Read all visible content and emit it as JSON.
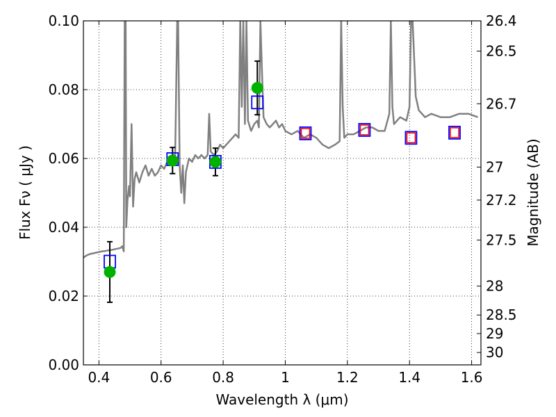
{
  "chart_data": {
    "type": "line",
    "xlabel": "Wavelength  λ (μm)",
    "ylabel": "Flux  Fν  ( μJy )",
    "ylabel_right": "Magnitude (AB)",
    "xlim": [
      0.35,
      1.63
    ],
    "ylim": [
      0.0,
      0.1
    ],
    "grid": true,
    "x_ticks": [
      0.4,
      0.6,
      0.8,
      1.0,
      1.2,
      1.4,
      1.6
    ],
    "x_tick_labels": [
      "0.4",
      "0.6",
      "0.8",
      "1",
      "1.2",
      "1.4",
      "1.6"
    ],
    "y_ticks": [
      0.0,
      0.02,
      0.04,
      0.06,
      0.08,
      0.1
    ],
    "y_tick_labels": [
      "0.00",
      "0.02",
      "0.04",
      "0.06",
      "0.08",
      "0.10"
    ],
    "right_ticks": [
      {
        "label": "26.4",
        "flux": 0.1
      },
      {
        "label": "26.5",
        "flux": 0.0912
      },
      {
        "label": "26.7",
        "flux": 0.0759
      },
      {
        "label": "27",
        "flux": 0.0575
      },
      {
        "label": "27.2",
        "flux": 0.0479
      },
      {
        "label": "27.5",
        "flux": 0.0363
      },
      {
        "label": "28",
        "flux": 0.0229
      },
      {
        "label": "28.5",
        "flux": 0.0145
      },
      {
        "label": "29",
        "flux": 0.0091
      },
      {
        "label": "30",
        "flux": 0.0036
      }
    ],
    "series": [
      {
        "kind": "model-spectrum",
        "color": "#808080",
        "points": [
          [
            0.35,
            0.0312
          ],
          [
            0.36,
            0.0318
          ],
          [
            0.37,
            0.0322
          ],
          [
            0.38,
            0.0324
          ],
          [
            0.39,
            0.0326
          ],
          [
            0.4,
            0.0328
          ],
          [
            0.41,
            0.033
          ],
          [
            0.42,
            0.0331
          ],
          [
            0.43,
            0.0333
          ],
          [
            0.44,
            0.0334
          ],
          [
            0.45,
            0.0336
          ],
          [
            0.46,
            0.0338
          ],
          [
            0.47,
            0.034
          ],
          [
            0.475,
            0.0345
          ],
          [
            0.48,
            0.033
          ],
          [
            0.483,
            0.1
          ],
          [
            0.486,
            0.1
          ],
          [
            0.488,
            0.04
          ],
          [
            0.492,
            0.048
          ],
          [
            0.497,
            0.052
          ],
          [
            0.5,
            0.049
          ],
          [
            0.505,
            0.07
          ],
          [
            0.51,
            0.046
          ],
          [
            0.515,
            0.054
          ],
          [
            0.52,
            0.056
          ],
          [
            0.53,
            0.053
          ],
          [
            0.54,
            0.056
          ],
          [
            0.55,
            0.058
          ],
          [
            0.56,
            0.055
          ],
          [
            0.57,
            0.057
          ],
          [
            0.58,
            0.055
          ],
          [
            0.59,
            0.056
          ],
          [
            0.6,
            0.058
          ],
          [
            0.61,
            0.057
          ],
          [
            0.62,
            0.059
          ],
          [
            0.63,
            0.06
          ],
          [
            0.64,
            0.061
          ],
          [
            0.645,
            0.058
          ],
          [
            0.652,
            0.1
          ],
          [
            0.655,
            0.1
          ],
          [
            0.66,
            0.058
          ],
          [
            0.665,
            0.05
          ],
          [
            0.67,
            0.058
          ],
          [
            0.675,
            0.047
          ],
          [
            0.68,
            0.056
          ],
          [
            0.69,
            0.06
          ],
          [
            0.7,
            0.059
          ],
          [
            0.71,
            0.061
          ],
          [
            0.72,
            0.06
          ],
          [
            0.73,
            0.061
          ],
          [
            0.74,
            0.06
          ],
          [
            0.75,
            0.061
          ],
          [
            0.755,
            0.073
          ],
          [
            0.76,
            0.062
          ],
          [
            0.77,
            0.061
          ],
          [
            0.78,
            0.062
          ],
          [
            0.79,
            0.064
          ],
          [
            0.8,
            0.063
          ],
          [
            0.81,
            0.064
          ],
          [
            0.82,
            0.065
          ],
          [
            0.83,
            0.066
          ],
          [
            0.84,
            0.067
          ],
          [
            0.85,
            0.066
          ],
          [
            0.855,
            0.1
          ],
          [
            0.86,
            0.075
          ],
          [
            0.865,
            0.1
          ],
          [
            0.87,
            0.07
          ],
          [
            0.875,
            0.1
          ],
          [
            0.88,
            0.071
          ],
          [
            0.89,
            0.068
          ],
          [
            0.9,
            0.07
          ],
          [
            0.91,
            0.071
          ],
          [
            0.915,
            0.069
          ],
          [
            0.92,
            0.1
          ],
          [
            0.925,
            0.085
          ],
          [
            0.93,
            0.072
          ],
          [
            0.94,
            0.07
          ],
          [
            0.95,
            0.069
          ],
          [
            0.96,
            0.07
          ],
          [
            0.97,
            0.071
          ],
          [
            0.98,
            0.069
          ],
          [
            0.99,
            0.07
          ],
          [
            1.0,
            0.068
          ],
          [
            1.02,
            0.067
          ],
          [
            1.04,
            0.068
          ],
          [
            1.06,
            0.066
          ],
          [
            1.08,
            0.067
          ],
          [
            1.1,
            0.066
          ],
          [
            1.12,
            0.064
          ],
          [
            1.14,
            0.063
          ],
          [
            1.16,
            0.064
          ],
          [
            1.175,
            0.065
          ],
          [
            1.18,
            0.1
          ],
          [
            1.185,
            0.075
          ],
          [
            1.19,
            0.066
          ],
          [
            1.2,
            0.067
          ],
          [
            1.22,
            0.067
          ],
          [
            1.24,
            0.068
          ],
          [
            1.26,
            0.069
          ],
          [
            1.28,
            0.069
          ],
          [
            1.3,
            0.068
          ],
          [
            1.32,
            0.068
          ],
          [
            1.335,
            0.073
          ],
          [
            1.34,
            0.1
          ],
          [
            1.345,
            0.075
          ],
          [
            1.35,
            0.07
          ],
          [
            1.37,
            0.072
          ],
          [
            1.39,
            0.071
          ],
          [
            1.4,
            0.075
          ],
          [
            1.405,
            0.1
          ],
          [
            1.41,
            0.1
          ],
          [
            1.42,
            0.078
          ],
          [
            1.43,
            0.074
          ],
          [
            1.45,
            0.072
          ],
          [
            1.47,
            0.073
          ],
          [
            1.5,
            0.072
          ],
          [
            1.53,
            0.072
          ],
          [
            1.56,
            0.073
          ],
          [
            1.59,
            0.073
          ],
          [
            1.62,
            0.072
          ]
        ]
      },
      {
        "kind": "observed-photometry",
        "marker": "circle",
        "color": "#00b200",
        "points": [
          {
            "x": 0.435,
            "y": 0.027,
            "err": 0.0088
          },
          {
            "x": 0.637,
            "y": 0.0594,
            "err": 0.0038
          },
          {
            "x": 0.775,
            "y": 0.059,
            "err": 0.004
          },
          {
            "x": 0.91,
            "y": 0.0805,
            "err": 0.0078
          }
        ]
      },
      {
        "kind": "model-photometry",
        "marker": "square",
        "color": "#0000ff",
        "points": [
          {
            "x": 0.435,
            "y": 0.03
          },
          {
            "x": 0.637,
            "y": 0.0598
          },
          {
            "x": 0.775,
            "y": 0.059
          },
          {
            "x": 0.91,
            "y": 0.0763
          },
          {
            "x": 1.065,
            "y": 0.0673
          },
          {
            "x": 1.255,
            "y": 0.0683
          },
          {
            "x": 1.405,
            "y": 0.066
          },
          {
            "x": 1.545,
            "y": 0.0675
          }
        ]
      },
      {
        "kind": "model-photometry-nir",
        "marker": "square",
        "color": "#ff0000",
        "points": [
          {
            "x": 1.065,
            "y": 0.0673
          },
          {
            "x": 1.255,
            "y": 0.0683
          },
          {
            "x": 1.405,
            "y": 0.066
          },
          {
            "x": 1.545,
            "y": 0.0675
          }
        ]
      }
    ]
  }
}
